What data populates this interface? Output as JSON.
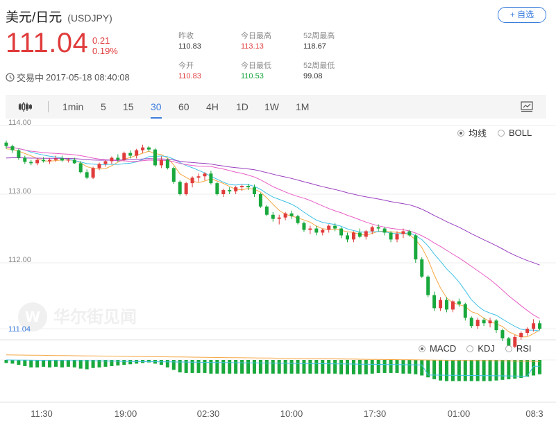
{
  "header": {
    "title": "美元/日元",
    "code": "(USDJPY)",
    "add_label": "+ 自选",
    "price": "111.04",
    "change": "0.21",
    "change_pct": "0.19%",
    "status_label": "交易中",
    "timestamp": "2017-05-18 08:40:08"
  },
  "stats": {
    "prev_close_label": "昨收",
    "prev_close": "110.83",
    "open_label": "今开",
    "open": "110.83",
    "high_label": "今日最高",
    "high": "113.13",
    "low_label": "今日最低",
    "low": "110.53",
    "w52_high_label": "52周最高",
    "w52_high": "118.67",
    "w52_low_label": "52周最低",
    "w52_low": "99.08"
  },
  "toolbar": {
    "intervals": [
      "1min",
      "5",
      "15",
      "30",
      "60",
      "4H",
      "1D",
      "1W",
      "1M"
    ],
    "active": "30"
  },
  "chart": {
    "main_options": [
      "均线",
      "BOLL"
    ],
    "main_selected": "均线",
    "sub_options": [
      "MACD",
      "KDJ",
      "RSI"
    ],
    "sub_selected": "MACD",
    "y_ticks": [
      "114.00",
      "113.00",
      "112.00"
    ],
    "current_price_label": "111.04",
    "x_ticks": [
      "11:30",
      "19:00",
      "02:30",
      "10:00",
      "17:30",
      "01:00",
      "08:3"
    ],
    "watermark": "华尔街见闻",
    "colors": {
      "up": "#e03b3b",
      "down": "#19a83c",
      "ma1": "#f5a742",
      "ma2": "#3fc1e6",
      "ma3": "#e85dc6",
      "ma4": "#9b3fc1"
    }
  },
  "chart_data": {
    "type": "candlestick",
    "ylim": [
      110.9,
      114.05
    ],
    "ohlc": [
      [
        113.75,
        113.78,
        113.66,
        113.7
      ],
      [
        113.7,
        113.72,
        113.6,
        113.64
      ],
      [
        113.64,
        113.66,
        113.5,
        113.53
      ],
      [
        113.53,
        113.56,
        113.44,
        113.47
      ],
      [
        113.47,
        113.5,
        113.42,
        113.45
      ],
      [
        113.45,
        113.52,
        113.42,
        113.5
      ],
      [
        113.5,
        113.54,
        113.46,
        113.48
      ],
      [
        113.48,
        113.52,
        113.44,
        113.5
      ],
      [
        113.5,
        113.56,
        113.47,
        113.52
      ],
      [
        113.52,
        113.56,
        113.47,
        113.49
      ],
      [
        113.49,
        113.52,
        113.46,
        113.5
      ],
      [
        113.5,
        113.53,
        113.44,
        113.45
      ],
      [
        113.45,
        113.48,
        113.3,
        113.32
      ],
      [
        113.32,
        113.36,
        113.22,
        113.24
      ],
      [
        113.24,
        113.4,
        113.22,
        113.38
      ],
      [
        113.38,
        113.46,
        113.35,
        113.44
      ],
      [
        113.44,
        113.5,
        113.4,
        113.48
      ],
      [
        113.48,
        113.55,
        113.44,
        113.53
      ],
      [
        113.53,
        113.58,
        113.47,
        113.5
      ],
      [
        113.5,
        113.62,
        113.48,
        113.6
      ],
      [
        113.6,
        113.64,
        113.52,
        113.56
      ],
      [
        113.56,
        113.66,
        113.52,
        113.64
      ],
      [
        113.64,
        113.72,
        113.6,
        113.68
      ],
      [
        113.68,
        113.7,
        113.62,
        113.65
      ],
      [
        113.65,
        113.67,
        113.4,
        113.42
      ],
      [
        113.42,
        113.55,
        113.38,
        113.5
      ],
      [
        113.5,
        113.52,
        113.36,
        113.38
      ],
      [
        113.38,
        113.4,
        113.15,
        113.18
      ],
      [
        113.18,
        113.2,
        112.98,
        113.0
      ],
      [
        113.0,
        113.18,
        112.98,
        113.16
      ],
      [
        113.16,
        113.26,
        113.1,
        113.24
      ],
      [
        113.24,
        113.3,
        113.18,
        113.26
      ],
      [
        113.26,
        113.32,
        113.2,
        113.3
      ],
      [
        113.3,
        113.34,
        113.14,
        113.16
      ],
      [
        113.16,
        113.18,
        112.98,
        113.0
      ],
      [
        113.0,
        113.08,
        112.96,
        113.06
      ],
      [
        113.06,
        113.1,
        113.0,
        113.04
      ],
      [
        113.04,
        113.12,
        113.0,
        113.1
      ],
      [
        113.1,
        113.14,
        113.05,
        113.12
      ],
      [
        113.12,
        113.15,
        113.06,
        113.1
      ],
      [
        113.1,
        113.14,
        112.96,
        113.0
      ],
      [
        113.0,
        113.02,
        112.8,
        112.82
      ],
      [
        112.82,
        112.84,
        112.68,
        112.7
      ],
      [
        112.7,
        112.74,
        112.6,
        112.64
      ],
      [
        112.64,
        112.7,
        112.56,
        112.66
      ],
      [
        112.66,
        112.74,
        112.62,
        112.72
      ],
      [
        112.72,
        112.76,
        112.64,
        112.68
      ],
      [
        112.68,
        112.7,
        112.56,
        112.58
      ],
      [
        112.58,
        112.6,
        112.45,
        112.48
      ],
      [
        112.48,
        112.54,
        112.42,
        112.5
      ],
      [
        112.5,
        112.54,
        112.4,
        112.44
      ],
      [
        112.44,
        112.5,
        112.4,
        112.48
      ],
      [
        112.48,
        112.56,
        112.44,
        112.54
      ],
      [
        112.54,
        112.58,
        112.46,
        112.5
      ],
      [
        112.5,
        112.52,
        112.36,
        112.4
      ],
      [
        112.4,
        112.44,
        112.3,
        112.34
      ],
      [
        112.34,
        112.46,
        112.3,
        112.44
      ],
      [
        112.44,
        112.5,
        112.36,
        112.38
      ],
      [
        112.38,
        112.48,
        112.34,
        112.46
      ],
      [
        112.46,
        112.54,
        112.42,
        112.52
      ],
      [
        112.52,
        112.56,
        112.46,
        112.5
      ],
      [
        112.5,
        112.52,
        112.4,
        112.44
      ],
      [
        112.44,
        112.46,
        112.3,
        112.34
      ],
      [
        112.34,
        112.46,
        112.3,
        112.42
      ],
      [
        112.42,
        112.5,
        112.36,
        112.46
      ],
      [
        112.46,
        112.48,
        112.38,
        112.4
      ],
      [
        112.4,
        112.42,
        112.0,
        112.05
      ],
      [
        112.05,
        112.08,
        111.78,
        111.8
      ],
      [
        111.8,
        111.82,
        111.5,
        111.53
      ],
      [
        111.53,
        111.58,
        111.3,
        111.34
      ],
      [
        111.34,
        111.5,
        111.3,
        111.46
      ],
      [
        111.46,
        111.5,
        111.28,
        111.32
      ],
      [
        111.32,
        111.46,
        111.28,
        111.44
      ],
      [
        111.44,
        111.48,
        111.36,
        111.4
      ],
      [
        111.4,
        111.42,
        111.16,
        111.2
      ],
      [
        111.2,
        111.22,
        111.05,
        111.08
      ],
      [
        111.08,
        111.2,
        111.04,
        111.17
      ],
      [
        111.17,
        111.2,
        111.08,
        111.12
      ],
      [
        111.12,
        111.2,
        111.06,
        111.16
      ],
      [
        111.16,
        111.18,
        110.98,
        111.02
      ],
      [
        111.02,
        111.04,
        110.86,
        110.9
      ],
      [
        110.9,
        110.92,
        110.74,
        110.78
      ],
      [
        110.78,
        110.95,
        110.76,
        110.92
      ],
      [
        110.92,
        111.0,
        110.88,
        110.98
      ],
      [
        110.98,
        111.06,
        110.94,
        111.04
      ],
      [
        111.04,
        111.18,
        111.0,
        111.12
      ],
      [
        111.12,
        111.16,
        111.02,
        111.04
      ]
    ],
    "macd_hist": [
      -0.005,
      -0.006,
      -0.008,
      -0.01,
      -0.012,
      -0.012,
      -0.011,
      -0.012,
      -0.011,
      -0.012,
      -0.011,
      -0.012,
      -0.014,
      -0.015,
      -0.013,
      -0.012,
      -0.011,
      -0.01,
      -0.009,
      -0.008,
      -0.007,
      -0.006,
      -0.005,
      -0.004,
      -0.006,
      -0.008,
      -0.012,
      -0.016,
      -0.02,
      -0.021,
      -0.021,
      -0.021,
      -0.021,
      -0.022,
      -0.022,
      -0.022,
      -0.022,
      -0.022,
      -0.022,
      -0.022,
      -0.022,
      -0.022,
      -0.022,
      -0.022,
      -0.022,
      -0.022,
      -0.022,
      -0.022,
      -0.022,
      -0.022,
      -0.022,
      -0.022,
      -0.022,
      -0.022,
      -0.023,
      -0.023,
      -0.023,
      -0.023,
      -0.023,
      -0.022,
      -0.021,
      -0.021,
      -0.021,
      -0.021,
      -0.022,
      -0.022,
      -0.023,
      -0.025,
      -0.028,
      -0.031,
      -0.033,
      -0.034,
      -0.034,
      -0.034,
      -0.034,
      -0.034,
      -0.034,
      -0.034,
      -0.034,
      -0.033,
      -0.032,
      -0.031,
      -0.03,
      -0.029,
      -0.027,
      -0.025,
      -0.023
    ]
  }
}
